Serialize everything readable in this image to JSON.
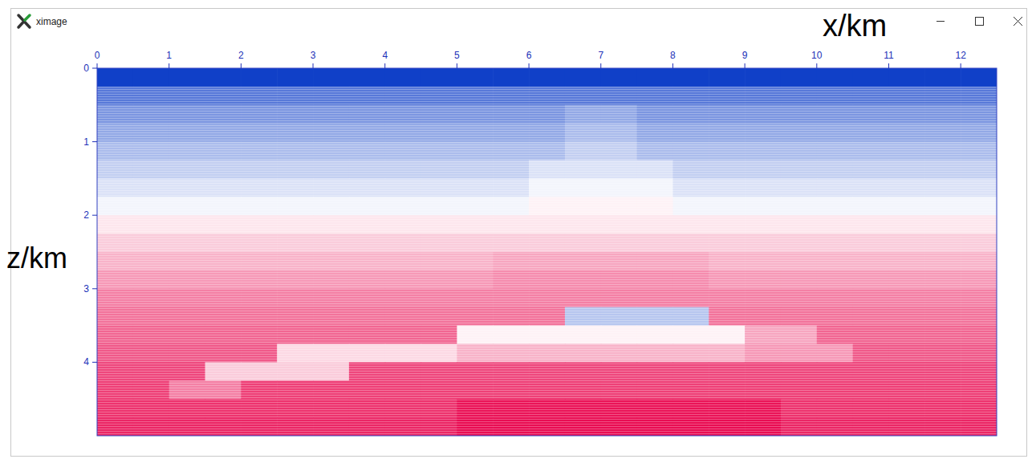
{
  "window_title": "ximage",
  "chart_data": {
    "type": "heatmap",
    "x_label": "x/km",
    "y_label": "z/km",
    "xlim": [
      0,
      12.5
    ],
    "ylim": [
      0,
      5
    ],
    "xticks": [
      0,
      1,
      2,
      3,
      4,
      5,
      6,
      7,
      8,
      9,
      10,
      11,
      12
    ],
    "yticks": [
      0,
      1,
      2,
      3,
      4
    ],
    "color_range": [
      -1,
      1
    ],
    "colors": [
      "#1040c8",
      "#ffffff",
      "#e8004a"
    ],
    "cells": [
      [
        -1,
        -1,
        -1,
        -1,
        -1,
        -1,
        -1,
        -1,
        -1,
        -1,
        -1,
        -1,
        -1,
        -1,
        -1,
        -1,
        -1,
        -1,
        -1,
        -1,
        -1,
        -1,
        -1,
        -1,
        -1
      ],
      [
        -0.7,
        -0.7,
        -0.7,
        -0.7,
        -0.7,
        -0.7,
        -0.7,
        -0.7,
        -0.7,
        -0.7,
        -0.7,
        -0.7,
        -0.7,
        -0.7,
        -0.7,
        -0.7,
        -0.7,
        -0.7,
        -0.7,
        -0.7,
        -0.7,
        -0.7,
        -0.7,
        -0.7,
        -0.7
      ],
      [
        -0.55,
        -0.55,
        -0.55,
        -0.55,
        -0.55,
        -0.55,
        -0.55,
        -0.55,
        -0.55,
        -0.55,
        -0.55,
        -0.55,
        -0.55,
        -0.45,
        -0.45,
        -0.55,
        -0.55,
        -0.55,
        -0.55,
        -0.55,
        -0.55,
        -0.55,
        -0.55,
        -0.55,
        -0.55
      ],
      [
        -0.45,
        -0.45,
        -0.45,
        -0.45,
        -0.45,
        -0.45,
        -0.45,
        -0.45,
        -0.45,
        -0.45,
        -0.45,
        -0.45,
        -0.45,
        -0.35,
        -0.35,
        -0.45,
        -0.45,
        -0.45,
        -0.45,
        -0.45,
        -0.45,
        -0.45,
        -0.45,
        -0.45,
        -0.45
      ],
      [
        -0.35,
        -0.35,
        -0.35,
        -0.35,
        -0.35,
        -0.35,
        -0.35,
        -0.35,
        -0.35,
        -0.35,
        -0.35,
        -0.35,
        -0.35,
        -0.25,
        -0.25,
        -0.35,
        -0.35,
        -0.35,
        -0.35,
        -0.35,
        -0.35,
        -0.35,
        -0.35,
        -0.35,
        -0.35
      ],
      [
        -0.25,
        -0.25,
        -0.25,
        -0.25,
        -0.25,
        -0.25,
        -0.25,
        -0.25,
        -0.25,
        -0.25,
        -0.25,
        -0.25,
        -0.15,
        -0.15,
        -0.15,
        -0.15,
        -0.25,
        -0.25,
        -0.25,
        -0.25,
        -0.25,
        -0.25,
        -0.25,
        -0.25,
        -0.25
      ],
      [
        -0.15,
        -0.15,
        -0.15,
        -0.15,
        -0.15,
        -0.15,
        -0.15,
        -0.15,
        -0.15,
        -0.15,
        -0.15,
        -0.15,
        -0.05,
        -0.05,
        -0.05,
        -0.05,
        -0.15,
        -0.15,
        -0.15,
        -0.15,
        -0.15,
        -0.15,
        -0.15,
        -0.15,
        -0.15
      ],
      [
        -0.05,
        -0.05,
        -0.05,
        -0.05,
        -0.05,
        -0.05,
        -0.05,
        -0.05,
        -0.05,
        -0.05,
        -0.05,
        -0.05,
        0.05,
        0.05,
        0.05,
        0.05,
        -0.05,
        -0.05,
        -0.05,
        -0.05,
        -0.05,
        -0.05,
        -0.05,
        -0.05,
        -0.05
      ],
      [
        0.1,
        0.1,
        0.1,
        0.1,
        0.1,
        0.1,
        0.1,
        0.1,
        0.1,
        0.1,
        0.1,
        0.1,
        0.1,
        0.1,
        0.1,
        0.1,
        0.1,
        0.1,
        0.1,
        0.1,
        0.1,
        0.1,
        0.1,
        0.1,
        0.1
      ],
      [
        0.2,
        0.2,
        0.2,
        0.2,
        0.2,
        0.2,
        0.2,
        0.2,
        0.2,
        0.2,
        0.2,
        0.2,
        0.2,
        0.2,
        0.2,
        0.2,
        0.2,
        0.2,
        0.2,
        0.2,
        0.2,
        0.2,
        0.2,
        0.2,
        0.2
      ],
      [
        0.3,
        0.3,
        0.3,
        0.3,
        0.3,
        0.3,
        0.3,
        0.3,
        0.3,
        0.3,
        0.3,
        0.35,
        0.35,
        0.35,
        0.35,
        0.35,
        0.35,
        0.3,
        0.3,
        0.3,
        0.3,
        0.3,
        0.3,
        0.3,
        0.3
      ],
      [
        0.4,
        0.4,
        0.4,
        0.4,
        0.4,
        0.4,
        0.4,
        0.4,
        0.4,
        0.4,
        0.4,
        0.45,
        0.45,
        0.45,
        0.45,
        0.45,
        0.45,
        0.4,
        0.4,
        0.4,
        0.4,
        0.4,
        0.4,
        0.4,
        0.4
      ],
      [
        0.5,
        0.5,
        0.5,
        0.5,
        0.5,
        0.5,
        0.5,
        0.5,
        0.5,
        0.5,
        0.5,
        0.5,
        0.5,
        0.5,
        0.5,
        0.5,
        0.5,
        0.5,
        0.5,
        0.5,
        0.5,
        0.5,
        0.5,
        0.5,
        0.5
      ],
      [
        0.55,
        0.55,
        0.55,
        0.55,
        0.55,
        0.55,
        0.55,
        0.55,
        0.55,
        0.55,
        0.55,
        0.55,
        0.55,
        -0.3,
        -0.3,
        -0.3,
        -0.3,
        0.55,
        0.55,
        0.55,
        0.55,
        0.55,
        0.55,
        0.55,
        0.55
      ],
      [
        0.6,
        0.6,
        0.6,
        0.6,
        0.6,
        0.6,
        0.6,
        0.6,
        0.6,
        0.6,
        0.05,
        0.05,
        0.05,
        0.05,
        0.05,
        0.05,
        0.05,
        0.05,
        0.35,
        0.35,
        0.6,
        0.6,
        0.6,
        0.6,
        0.6
      ],
      [
        0.65,
        0.65,
        0.65,
        0.65,
        0.65,
        0.15,
        0.15,
        0.15,
        0.15,
        0.15,
        0.3,
        0.3,
        0.3,
        0.3,
        0.3,
        0.3,
        0.3,
        0.3,
        0.4,
        0.4,
        0.4,
        0.65,
        0.65,
        0.65,
        0.65
      ],
      [
        0.72,
        0.72,
        0.72,
        0.2,
        0.2,
        0.2,
        0.2,
        0.72,
        0.72,
        0.72,
        0.72,
        0.72,
        0.72,
        0.72,
        0.72,
        0.72,
        0.72,
        0.72,
        0.72,
        0.72,
        0.72,
        0.72,
        0.72,
        0.72,
        0.72
      ],
      [
        0.75,
        0.75,
        0.5,
        0.5,
        0.75,
        0.75,
        0.75,
        0.75,
        0.75,
        0.75,
        0.75,
        0.75,
        0.75,
        0.75,
        0.75,
        0.75,
        0.75,
        0.75,
        0.75,
        0.75,
        0.75,
        0.75,
        0.75,
        0.75,
        0.75
      ],
      [
        0.8,
        0.8,
        0.8,
        0.8,
        0.8,
        0.8,
        0.8,
        0.8,
        0.8,
        0.8,
        0.92,
        0.92,
        0.92,
        0.92,
        0.92,
        0.92,
        0.92,
        0.92,
        0.92,
        0.8,
        0.8,
        0.8,
        0.8,
        0.8,
        0.8
      ],
      [
        0.85,
        0.85,
        0.85,
        0.85,
        0.85,
        0.85,
        0.85,
        0.85,
        0.85,
        0.85,
        0.95,
        0.95,
        0.95,
        0.95,
        0.95,
        0.95,
        0.95,
        0.95,
        0.95,
        0.85,
        0.85,
        0.85,
        0.85,
        0.85,
        0.85
      ]
    ]
  }
}
